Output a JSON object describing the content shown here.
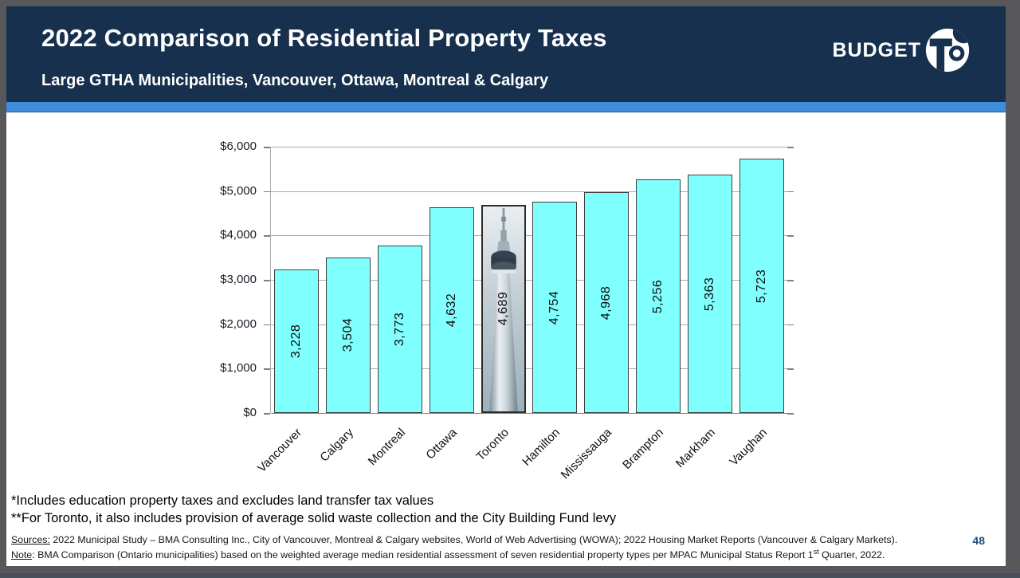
{
  "header": {
    "title": "2022 Comparison of Residential Property Taxes",
    "subtitle": "Large GTHA Municipalities, Vancouver, Ottawa, Montreal & Calgary",
    "logo_text": "BUDGET",
    "logo_circle_text": "TO",
    "colors": {
      "navy": "#16304E",
      "stripe_blue": "#3E8EDD"
    }
  },
  "chart_data": {
    "type": "bar",
    "title": "",
    "xlabel": "",
    "ylabel": "",
    "categories": [
      "Vancouver",
      "Calgary",
      "Montreal",
      "Ottawa",
      "Toronto",
      "Hamilton",
      "Mississauga",
      "Brampton",
      "Markham",
      "Vaughan"
    ],
    "values": [
      3228,
      3504,
      3773,
      4632,
      4689,
      4754,
      4968,
      5256,
      5363,
      5723
    ],
    "value_labels": [
      "3,228",
      "3,504",
      "3,773",
      "4,632",
      "4,689",
      "4,754",
      "4,968",
      "5,256",
      "5,363",
      "5,723"
    ],
    "y_tick_labels": [
      "$0",
      "$1,000",
      "$2,000",
      "$3,000",
      "$4,000",
      "$5,000",
      "$6,000"
    ],
    "ylim": [
      0,
      6000
    ],
    "y_step": 1000,
    "grid": true,
    "legend": "none",
    "bar_color": "#80FFFF",
    "bar_border_color": "#3f3f3f",
    "highlight_index": 4,
    "highlight_category": "Toronto",
    "highlight_style": "cn-tower-photo-fill"
  },
  "footnotes": {
    "line1": "*Includes education property taxes and excludes land transfer tax values",
    "line2": "**For Toronto, it also includes provision of average solid waste collection and the City Building Fund levy"
  },
  "sources": {
    "label1": "Sources:",
    "text1": " 2022 Municipal Study – BMA Consulting Inc., City of Vancouver, Montreal & Calgary websites, World of Web Advertising (WOWA); 2022 Housing Market Reports (Vancouver & Calgary Markets).",
    "label2": "Note",
    "text2_pre": ": BMA Comparison  (Ontario municipalities) based on the weighted average median residential assessment of seven residential property types per MPAC Municipal Status Report 1",
    "text2_sup": "st",
    "text2_post": " Quarter, 2022."
  },
  "page_number": "48"
}
